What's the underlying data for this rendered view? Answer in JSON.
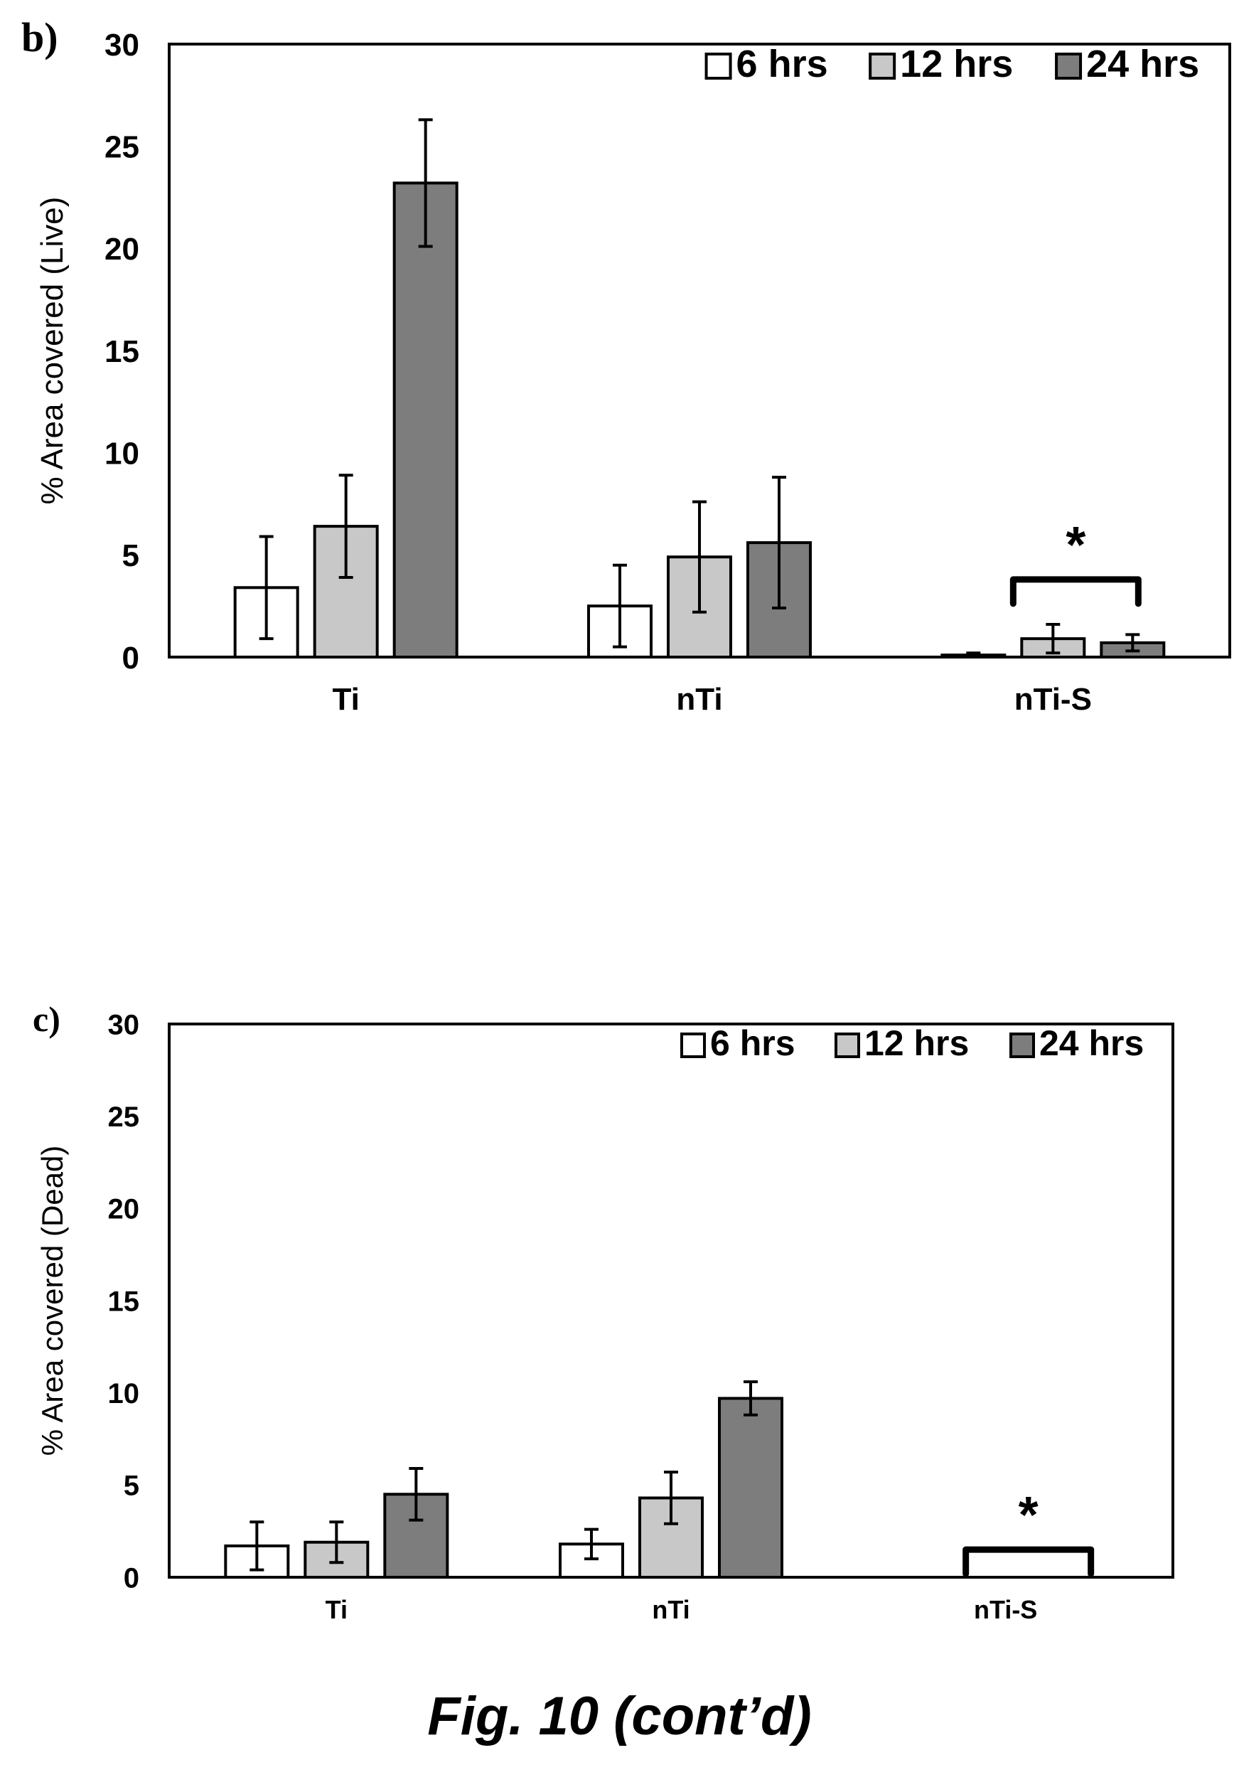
{
  "caption": "Fig. 10 (cont’d)",
  "legend_labels": [
    "6 hrs",
    "12 hrs",
    "24 hrs"
  ],
  "colors": {
    "6 hrs": "#ffffff",
    "12 hrs": "#c8c8c8",
    "24 hrs": "#7d7d7d",
    "axis": "#000000"
  },
  "chart_data": [
    {
      "panel": "b)",
      "type": "bar",
      "ylabel": "% Area covered (Live)",
      "categories": [
        "Ti",
        "nTi",
        "nTi-S"
      ],
      "ylim": [
        0,
        30
      ],
      "yticks": [
        0,
        5,
        10,
        15,
        20,
        25,
        30
      ],
      "series": [
        {
          "name": "6 hrs",
          "values": [
            3.4,
            2.5,
            0.1
          ],
          "errors": [
            2.5,
            2.0,
            0.1
          ]
        },
        {
          "name": "12 hrs",
          "values": [
            6.4,
            4.9,
            0.9
          ],
          "errors": [
            2.5,
            2.7,
            0.7
          ]
        },
        {
          "name": "24 hrs",
          "values": [
            23.2,
            5.6,
            0.7
          ],
          "errors": [
            3.1,
            3.2,
            0.4
          ]
        }
      ],
      "legend_position": "top-right",
      "annotation": {
        "text": "*",
        "category": "nTi-S",
        "bracket_top": 3.8
      },
      "grid": false
    },
    {
      "panel": "c)",
      "type": "bar",
      "ylabel": "% Area covered (Dead)",
      "categories": [
        "Ti",
        "nTi",
        "nTi-S"
      ],
      "ylim": [
        0,
        30
      ],
      "yticks": [
        0,
        5,
        10,
        15,
        20,
        25,
        30
      ],
      "series": [
        {
          "name": "6 hrs",
          "values": [
            1.7,
            1.8,
            0.0
          ],
          "errors": [
            1.3,
            0.8,
            0.0
          ]
        },
        {
          "name": "12 hrs",
          "values": [
            1.9,
            4.3,
            0.0
          ],
          "errors": [
            1.1,
            1.4,
            0.0
          ]
        },
        {
          "name": "24 hrs",
          "values": [
            4.5,
            9.7,
            0.0
          ],
          "errors": [
            1.4,
            0.9,
            0.0
          ]
        }
      ],
      "legend_position": "top-right",
      "annotation": {
        "text": "*",
        "category": "nTi-S",
        "bracket_top": 1.5
      },
      "grid": false
    }
  ]
}
